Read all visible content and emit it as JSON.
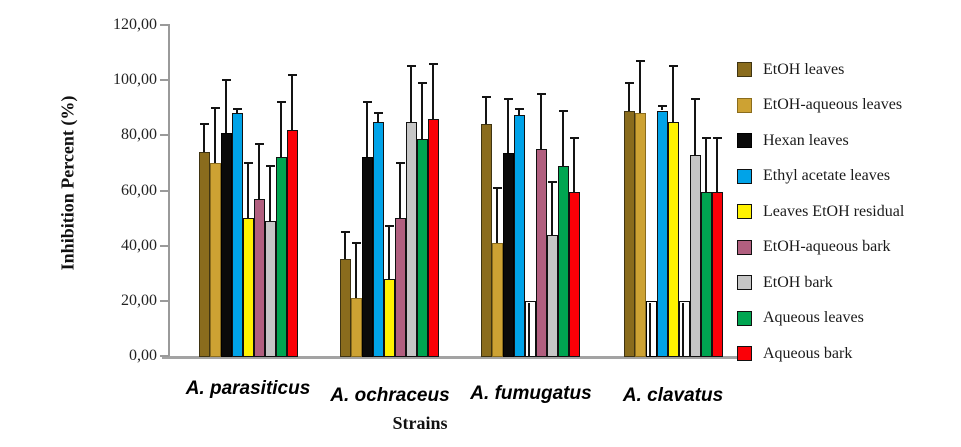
{
  "chart_data": {
    "type": "bar",
    "ylabel": "Inhibition Percent (%)",
    "xlabel": "Strains",
    "ylim": [
      0,
      120
    ],
    "grid": false,
    "legend_position": "right",
    "yticks": [
      {
        "value": 120,
        "label": "120,00"
      },
      {
        "value": 100,
        "label": "100,00"
      },
      {
        "value": 80,
        "label": "80,00"
      },
      {
        "value": 60,
        "label": "60,00"
      },
      {
        "value": 40,
        "label": "40,00"
      },
      {
        "value": 20,
        "label": "20,00"
      },
      {
        "value": 0,
        "label": "0,00"
      }
    ],
    "categories": [
      "A. parasiticus",
      "A. ochraceus",
      "A. fumugatus",
      "A. clavatus"
    ],
    "series": [
      {
        "name": "EtOH leaves",
        "color": "#8a6c1d",
        "border_color": "#3f3412",
        "values": [
          74,
          35,
          84,
          89
        ],
        "error_tops": [
          84,
          45,
          94,
          99
        ]
      },
      {
        "name": "EtOH-aqueous leaves",
        "color": "#cda233",
        "border_color": "#8a6c1d",
        "values": [
          70,
          21,
          41,
          88
        ],
        "error_tops": [
          90,
          41,
          61,
          107
        ]
      },
      {
        "name": "Hexan leaves",
        "color": "#0a0a0a",
        "border_color": "#000000",
        "values": [
          81,
          72,
          73.5,
          20
        ],
        "error_tops": [
          100,
          92,
          93,
          20
        ]
      },
      {
        "name": "Ethyl acetate leaves",
        "color": "#00a3e8",
        "border_color": "#111111",
        "values": [
          88,
          85,
          87.5,
          89
        ],
        "error_tops": [
          89.5,
          88,
          89.5,
          90.5
        ]
      },
      {
        "name": "Leaves EtOH residual",
        "color": "#fff200",
        "border_color": "#111111",
        "values": [
          50,
          28,
          20,
          85
        ],
        "error_tops": [
          70,
          47,
          20,
          105
        ]
      },
      {
        "name": "EtOH-aqueous bark",
        "color": "#b15f7f",
        "border_color": "#111111",
        "values": [
          57,
          50,
          75,
          20
        ],
        "error_tops": [
          77,
          70,
          95,
          20
        ]
      },
      {
        "name": "EtOH bark",
        "color": "#c6c6c6",
        "border_color": "#111111",
        "values": [
          49,
          85,
          44,
          73
        ],
        "error_tops": [
          69,
          105,
          63,
          93
        ]
      },
      {
        "name": "Aqueous leaves",
        "color": "#00a551",
        "border_color": "#111111",
        "values": [
          72,
          78.5,
          69,
          59.5
        ],
        "error_tops": [
          92,
          99,
          89,
          79
        ]
      },
      {
        "name": "Aqueous bark",
        "color": "#fb0007",
        "border_color": "#111111",
        "values": [
          82,
          86,
          59.5,
          59.5
        ],
        "error_tops": [
          102,
          106,
          79,
          79
        ]
      }
    ],
    "white_rendered_bars": [
      {
        "series": "Leaves EtOH residual",
        "category": "A. fumugatus"
      },
      {
        "series": "Hexan leaves",
        "category": "A. clavatus"
      },
      {
        "series": "EtOH-aqueous bark",
        "category": "A. clavatus"
      }
    ]
  }
}
